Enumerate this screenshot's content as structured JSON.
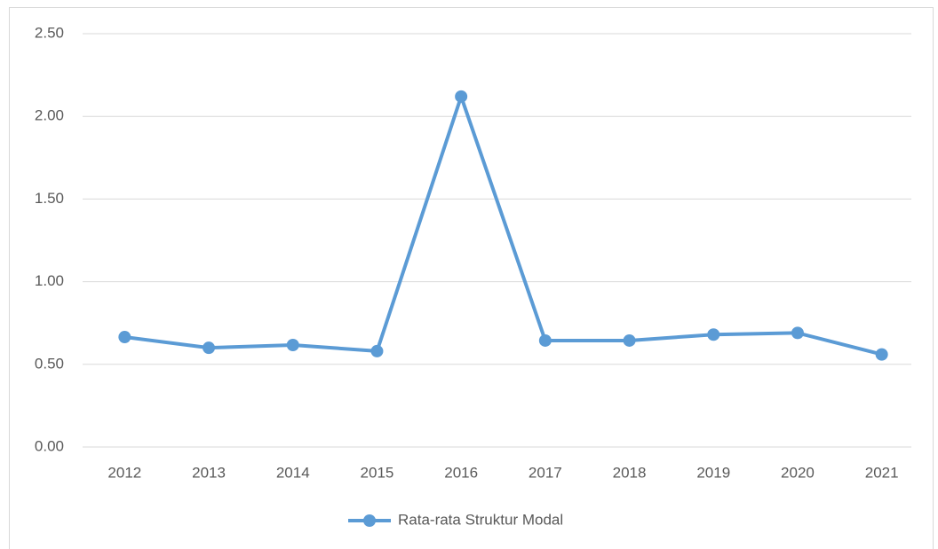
{
  "chart_data": {
    "type": "line",
    "categories": [
      "2012",
      "2013",
      "2014",
      "2015",
      "2016",
      "2017",
      "2018",
      "2019",
      "2020",
      "2021"
    ],
    "series": [
      {
        "name": "Rata-rata Struktur Modal",
        "color": "#5b9bd5",
        "values": [
          0.665,
          0.6,
          0.617,
          0.58,
          2.12,
          0.644,
          0.644,
          0.68,
          0.69,
          0.56
        ]
      }
    ],
    "ylim": [
      0,
      2.5
    ],
    "yticks": [
      {
        "value": 0,
        "label": "0.00"
      },
      {
        "value": 0.5,
        "label": "0.50"
      },
      {
        "value": 1,
        "label": "1.00"
      },
      {
        "value": 1.5,
        "label": "1.50"
      },
      {
        "value": 2,
        "label": "2.00"
      },
      {
        "value": 2.5,
        "label": "2.50"
      }
    ],
    "grid": true,
    "legend": "bottom"
  }
}
